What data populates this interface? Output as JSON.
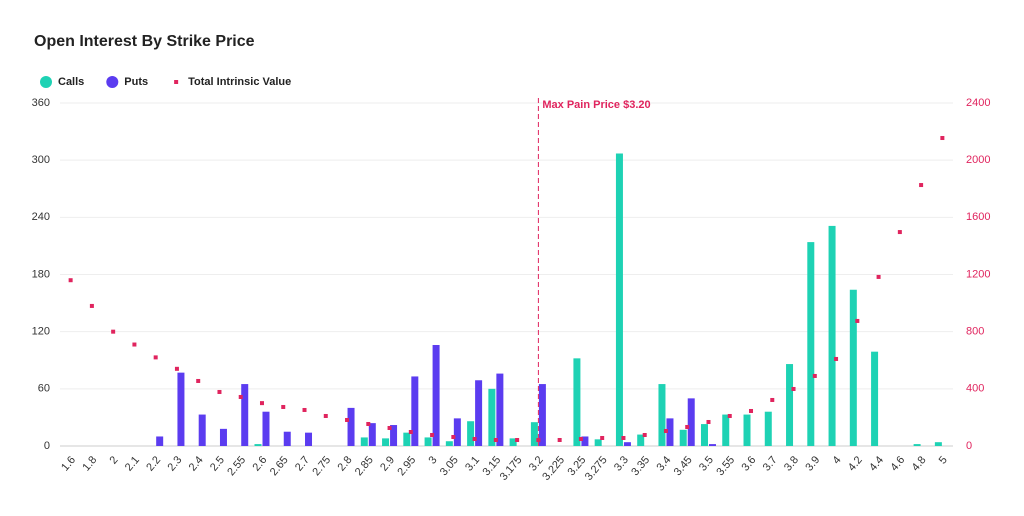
{
  "chart_data": {
    "type": "bar",
    "title": "Open Interest By Strike Price",
    "categories": [
      "1.6",
      "1.8",
      "2",
      "2.1",
      "2.2",
      "2.3",
      "2.4",
      "2.5",
      "2.55",
      "2.6",
      "2.65",
      "2.7",
      "2.75",
      "2.8",
      "2.85",
      "2.9",
      "2.95",
      "3",
      "3.05",
      "3.1",
      "3.15",
      "3.175",
      "3.2",
      "3.225",
      "3.25",
      "3.275",
      "3.3",
      "3.35",
      "3.4",
      "3.45",
      "3.5",
      "3.55",
      "3.6",
      "3.7",
      "3.8",
      "3.9",
      "4",
      "4.2",
      "4.4",
      "4.6",
      "4.8",
      "5"
    ],
    "series": [
      {
        "name": "Calls",
        "type": "bar",
        "color": "#1ed2b4",
        "values": [
          0,
          0,
          0,
          0,
          0,
          0,
          0,
          0,
          0,
          2,
          0,
          0,
          0,
          0,
          9,
          8,
          14,
          9,
          5,
          26,
          60,
          8,
          25,
          0,
          92,
          7,
          307,
          12,
          65,
          17,
          23,
          33,
          33,
          36,
          86,
          214,
          231,
          164,
          99,
          0,
          2,
          4
        ]
      },
      {
        "name": "Puts",
        "type": "bar",
        "color": "#5b3cf0",
        "values": [
          0,
          0,
          0,
          0,
          10,
          77,
          33,
          18,
          65,
          36,
          15,
          14,
          0,
          40,
          24,
          22,
          73,
          106,
          29,
          69,
          76,
          0,
          65,
          0,
          10,
          0,
          4,
          0,
          29,
          50,
          2,
          0,
          0,
          0,
          0,
          0,
          0,
          0,
          0,
          0,
          0,
          0
        ]
      },
      {
        "name": "Total Intrinsic Value",
        "type": "scatter",
        "axis": "y2",
        "color": "#e0245e",
        "values": [
          1160,
          980,
          800,
          710,
          620,
          540,
          455,
          378,
          343,
          300,
          273,
          252,
          210,
          182,
          154,
          126,
          98,
          77,
          63,
          49,
          42,
          42,
          42,
          42,
          49,
          56,
          56,
          77,
          105,
          133,
          168,
          210,
          245,
          322,
          399,
          490,
          609,
          875,
          1183,
          1497,
          1826,
          2155
        ]
      }
    ],
    "annotation": {
      "text": "Max Pain Price $3.20",
      "category": "3.2",
      "color": "#e0245e"
    },
    "ylim": [
      0,
      360
    ],
    "yticks": [
      0,
      60,
      120,
      180,
      240,
      300,
      360
    ],
    "y2lim": [
      0,
      2400
    ],
    "y2ticks": [
      0,
      400,
      800,
      1200,
      1600,
      2000,
      2400
    ],
    "grid": true,
    "legend": "top-left"
  }
}
